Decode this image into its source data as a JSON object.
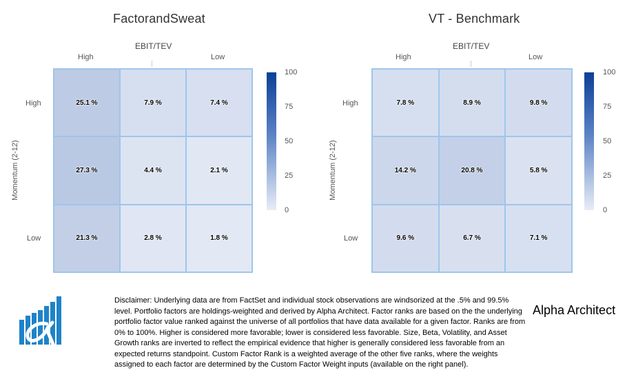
{
  "chart_data": [
    {
      "type": "heatmap",
      "title": "FactorandSweat",
      "xlabel": "EBIT/TEV",
      "ylabel": "Momentum (2-12)",
      "x_categories": [
        "High",
        "",
        "Low"
      ],
      "y_categories": [
        "High",
        "",
        "Low"
      ],
      "values": [
        [
          25.1,
          7.9,
          7.4
        ],
        [
          27.3,
          4.4,
          2.1
        ],
        [
          21.3,
          2.8,
          1.8
        ]
      ],
      "labels": [
        [
          "25.1 %",
          "7.9 %",
          "7.4 %"
        ],
        [
          "27.3 %",
          "4.4 %",
          "2.1 %"
        ],
        [
          "21.3 %",
          "2.8 %",
          "1.8 %"
        ]
      ],
      "color_range": [
        0,
        100
      ],
      "legend_ticks": [
        "100",
        "75",
        "50",
        "25",
        "0"
      ],
      "legend_placement": "right"
    },
    {
      "type": "heatmap",
      "title": "VT - Benchmark",
      "xlabel": "EBIT/TEV",
      "ylabel": "Momentum (2-12)",
      "x_categories": [
        "High",
        "",
        "Low"
      ],
      "y_categories": [
        "High",
        "",
        "Low"
      ],
      "values": [
        [
          7.8,
          8.9,
          9.8
        ],
        [
          14.2,
          20.8,
          5.8
        ],
        [
          9.6,
          6.7,
          7.1
        ]
      ],
      "labels": [
        [
          "7.8 %",
          "8.9 %",
          "9.8 %"
        ],
        [
          "14.2 %",
          "20.8 %",
          "5.8 %"
        ],
        [
          "9.6 %",
          "6.7 %",
          "7.1 %"
        ]
      ],
      "color_range": [
        0,
        100
      ],
      "legend_ticks": [
        "100",
        "75",
        "50",
        "25",
        "0"
      ],
      "legend_placement": "right"
    }
  ],
  "colors": {
    "cell_low": "#e8edf7",
    "cell_high": "#0b3f98",
    "cell_border": "#9ec5ec"
  },
  "footer": {
    "disclaimer": "Disclaimer: Underlying data are from FactSet and individual stock observations are windsorized at the .5% and 99.5% level. Portfolio factors are holdings-weighted and derived by Alpha Architect. Factor ranks are based on the the underlying portfolio factor value ranked against the universe of all portfolios that have data available for a given factor. Ranks are from 0% to 100%. Higher is considered more favorable; lower is considered less favorable. Size, Beta, Volatility, and Asset Growth ranks are inverted to reflect the empirical evidence that higher is generally considered less favorable from an expected returns standpoint. Custom Factor Rank is a weighted average of the other five ranks, where the weights assigned to each factor are determined by the Custom Factor Weight inputs (available on the right panel).",
    "brand": "Alpha Architect",
    "logo_icon": "alpha-architect-logo-icon"
  }
}
